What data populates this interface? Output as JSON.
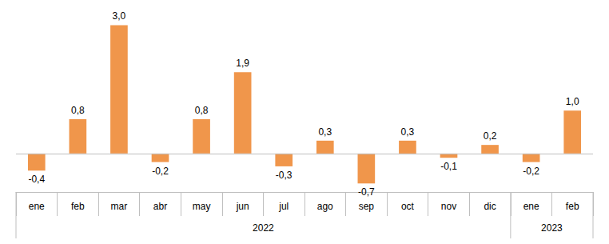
{
  "chart_data": {
    "type": "bar",
    "categories": [
      "ene",
      "feb",
      "mar",
      "abr",
      "may",
      "jun",
      "jul",
      "ago",
      "sep",
      "oct",
      "nov",
      "dic",
      "ene",
      "feb"
    ],
    "category_groups": [
      "2022",
      "2022",
      "2022",
      "2022",
      "2022",
      "2022",
      "2022",
      "2022",
      "2022",
      "2022",
      "2022",
      "2022",
      "2023",
      "2023"
    ],
    "values": [
      -0.4,
      0.8,
      3.0,
      -0.2,
      0.8,
      1.9,
      -0.3,
      0.3,
      -0.7,
      0.3,
      -0.1,
      0.2,
      -0.2,
      1.0
    ],
    "value_labels": [
      "-0,4",
      "0,8",
      "3,0",
      "-0,2",
      "0,8",
      "1,9",
      "-0,3",
      "0,3",
      "-0,7",
      "0,3",
      "-0,1",
      "0,2",
      "-0,2",
      "1,0"
    ],
    "color": "#f0964b",
    "ylim": [
      -0.9,
      3.4
    ],
    "grid": false,
    "data_labels": true,
    "tick_labels": "x"
  }
}
